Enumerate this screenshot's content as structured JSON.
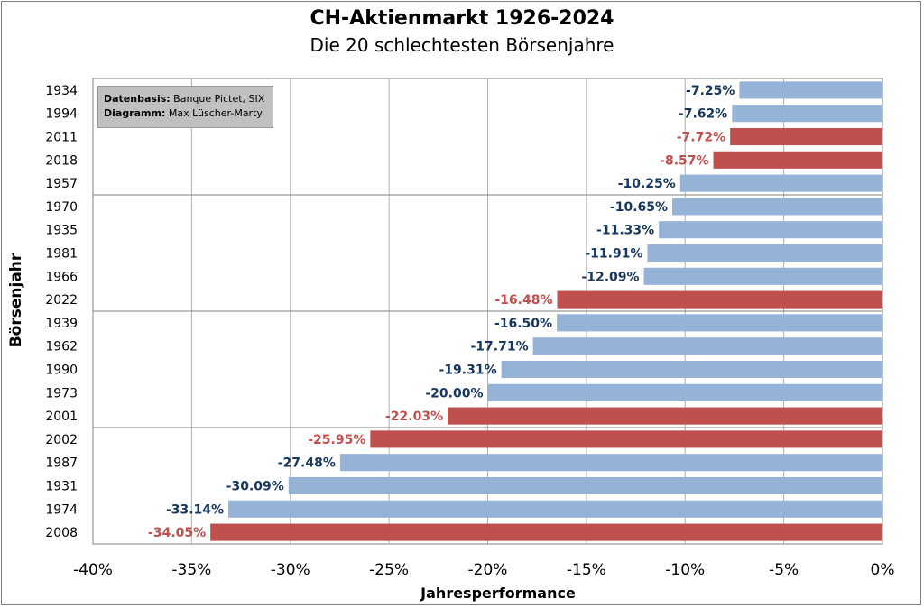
{
  "chart_data": {
    "type": "bar",
    "orientation": "horizontal",
    "title": "CH-Aktienmarkt  1926-2024",
    "subtitle": "Die 20 schlechtesten Börsenjahre",
    "xlabel": "Jahresperformance",
    "ylabel": "Börsenjahr",
    "xlim": [
      -40,
      0
    ],
    "x_ticks": [
      "-40%",
      "-35%",
      "-30%",
      "-25%",
      "-20%",
      "-15%",
      "-10%",
      "-5%",
      "0%"
    ],
    "grid": true,
    "source_label_1": "Datenbasis:",
    "source_text_1": "Banque Pictet, SIX",
    "source_label_2": "Diagramm:",
    "source_text_2": "Max Lüscher-Marty",
    "colors": {
      "normal_bar": "#95b3d7",
      "highlight_bar": "#c0504d",
      "normal_label": "#17375e",
      "highlight_label": "#c0504d"
    },
    "categories": [
      "1934",
      "1994",
      "2011",
      "2018",
      "1957",
      "1970",
      "1935",
      "1981",
      "1966",
      "2022",
      "1939",
      "1962",
      "1990",
      "1973",
      "2001",
      "2002",
      "1987",
      "1931",
      "1974",
      "2008"
    ],
    "values": [
      -7.25,
      -7.62,
      -7.72,
      -8.57,
      -10.25,
      -10.65,
      -11.33,
      -11.91,
      -12.09,
      -16.48,
      -16.5,
      -17.71,
      -19.31,
      -20.0,
      -22.03,
      -25.95,
      -27.48,
      -30.09,
      -33.14,
      -34.05
    ],
    "labels": [
      "-7.25%",
      "-7.62%",
      "-7.72%",
      "-8.57%",
      "-10.25%",
      "-10.65%",
      "-11.33%",
      "-11.91%",
      "-12.09%",
      "-16.48%",
      "-16.50%",
      "-17.71%",
      "-19.31%",
      "-20.00%",
      "-22.03%",
      "-25.95%",
      "-27.48%",
      "-30.09%",
      "-33.14%",
      "-34.05%"
    ],
    "highlight": [
      false,
      false,
      true,
      true,
      false,
      false,
      false,
      false,
      false,
      true,
      false,
      false,
      false,
      false,
      true,
      true,
      false,
      false,
      false,
      true
    ]
  }
}
